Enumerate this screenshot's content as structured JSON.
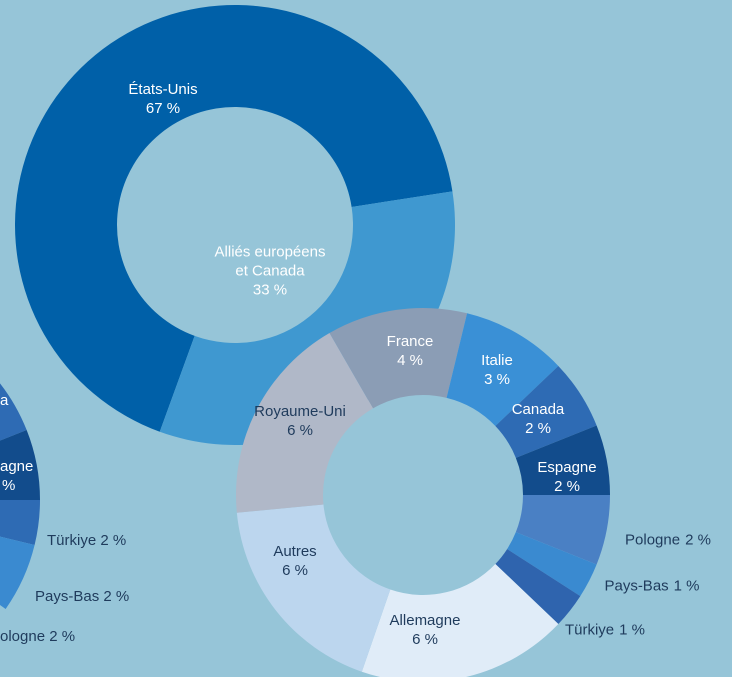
{
  "chart_data": [
    {
      "type": "donut",
      "categories": [
        "États-Unis",
        "Alliés européens\net Canada"
      ],
      "values": [
        67,
        33
      ],
      "value_labels": [
        "67 %",
        "33 %"
      ],
      "colors": [
        "#0060a8",
        "#3f98d0"
      ]
    },
    {
      "type": "donut",
      "categories": [
        "France",
        "Italie",
        "Canada",
        "Espagne",
        "Pologne",
        "Pays-Bas",
        "Türkiye",
        "Allemagne",
        "Autres",
        "Royaume-Uni"
      ],
      "values": [
        4,
        3,
        2,
        2,
        2,
        1,
        1,
        6,
        6,
        6
      ],
      "value_labels": [
        "4 %",
        "3 %",
        "2 %",
        "2 %",
        "2 %",
        "1 %",
        "1 %",
        "6 %",
        "6 %",
        "6 %"
      ],
      "colors": [
        "#8b9db5",
        "#3a90d6",
        "#2e6bb4",
        "#124c8c",
        "#4a80c4",
        "#3a8ad0",
        "#2f64ae",
        "#e0ecf8",
        "#bcd6ee",
        "#b0b8c8"
      ]
    }
  ],
  "partial_chart": {
    "labels": [
      "a",
      "agne",
      "%",
      "Türkiye 2 %",
      "Pays-Bas 2 %",
      "ologne 2 %"
    ]
  }
}
